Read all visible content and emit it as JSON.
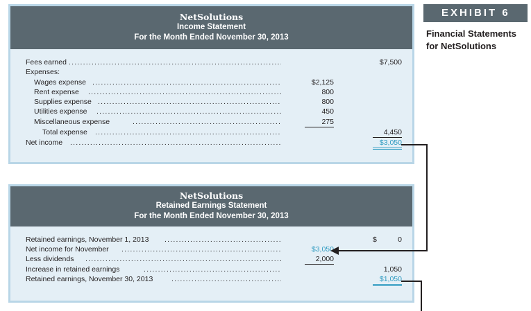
{
  "exhibit": {
    "tag": "EXHIBIT 6",
    "caption": "Financial Statements for NetSolutions"
  },
  "income_statement": {
    "company": "NetSolutions",
    "title": "Income Statement",
    "period": "For the Month Ended November 30, 2013",
    "fees_earned_label": "Fees earned",
    "fees_earned": "$7,500",
    "expenses_label": "Expenses:",
    "expenses": [
      {
        "label": "Wages expense",
        "amount": "$2,125"
      },
      {
        "label": "Rent expense",
        "amount": "800"
      },
      {
        "label": "Supplies expense",
        "amount": "800"
      },
      {
        "label": "Utilities expense",
        "amount": "450"
      },
      {
        "label": "Miscellaneous expense",
        "amount": "275"
      }
    ],
    "total_expense_label": "Total expense",
    "total_expense": "4,450",
    "net_income_label": "Net income",
    "net_income": "$3,050"
  },
  "retained_earnings_statement": {
    "company": "NetSolutions",
    "title": "Retained Earnings Statement",
    "period": "For the Month Ended November 30, 2013",
    "beginning_label": "Retained earnings, November 1, 2013",
    "beginning_currency": "$",
    "beginning_value": "0",
    "net_income_label": "Net income for November",
    "net_income": "$3,050",
    "dividends_label": "Less dividends",
    "dividends": "2,000",
    "increase_label": "Increase in retained earnings",
    "increase": "1,050",
    "ending_label": "Retained earnings, November 30, 2013",
    "ending": "$1,050"
  },
  "colors": {
    "header": "#5a6870",
    "panel": "#e4eff6",
    "border": "#b9d6e7",
    "highlight": "#2f9bc1"
  }
}
